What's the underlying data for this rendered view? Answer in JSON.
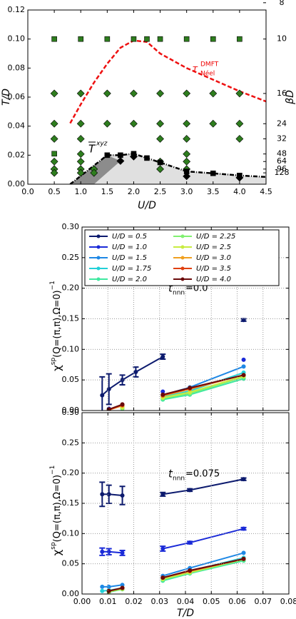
{
  "chart_data": [
    {
      "type": "phase",
      "xlabel": "U/D",
      "ylabel": "T/D",
      "y2label": "βD",
      "xlim": [
        0,
        4.5
      ],
      "ylim": [
        0,
        0.12
      ],
      "y2scale": "reciprocal",
      "xticks": [
        {
          "value": 0,
          "label": "0.0"
        },
        {
          "value": 0.5,
          "label": "0.5"
        },
        {
          "value": 1,
          "label": "1.0"
        },
        {
          "value": 1.5,
          "label": "1.5"
        },
        {
          "value": 2,
          "label": "2.0"
        },
        {
          "value": 2.5,
          "label": "2.5"
        },
        {
          "value": 3,
          "label": "3.0"
        },
        {
          "value": 3.5,
          "label": "3.5"
        },
        {
          "value": 4,
          "label": "4.0"
        },
        {
          "value": 4.5,
          "label": "4.5"
        }
      ],
      "yticks": [
        {
          "value": 0,
          "label": "0.00"
        },
        {
          "value": 0.02,
          "label": "0.02"
        },
        {
          "value": 0.04,
          "label": "0.04"
        },
        {
          "value": 0.06,
          "label": "0.06"
        },
        {
          "value": 0.08,
          "label": "0.08"
        },
        {
          "value": 0.1,
          "label": "0.10"
        },
        {
          "value": 0.12,
          "label": "0.12"
        }
      ],
      "y2ticks": [
        8,
        10,
        16,
        24,
        32,
        48,
        64,
        96,
        128
      ],
      "grid": false,
      "series": [
        {
          "kind": "polygon",
          "color": "#e0e0e0",
          "x": [
            1.25,
            1.5,
            1.75,
            2.0,
            2.25,
            2.5,
            3.0,
            3.5,
            4.0,
            4.5,
            4.5
          ],
          "values": [
            0,
            0.02,
            0.02,
            0.021,
            0.018,
            0.015,
            0.0088,
            0.0075,
            0.006,
            0.005,
            0
          ]
        },
        {
          "kind": "polygon",
          "color": "#8c8c8c",
          "x": [
            0.8,
            1.5,
            1.75,
            1.25
          ],
          "values": [
            0,
            0.02,
            0.016,
            0
          ]
        },
        {
          "kind": "line",
          "color": "#000000",
          "dash": "6,2,1,2",
          "x": [
            0.8,
            1.5,
            1.75,
            2.0,
            2.25,
            2.5,
            3.0,
            3.5,
            4.0,
            4.5
          ],
          "values": [
            0,
            0.02,
            0.02,
            0.021,
            0.018,
            0.015,
            0.0088,
            0.0075,
            0.006,
            0.005
          ]
        },
        {
          "kind": "line",
          "color": "#ee1111",
          "dash": "6,3",
          "x": [
            0.8,
            1.0,
            1.25,
            1.5,
            1.75,
            2.0,
            2.25,
            2.5,
            3.0,
            3.5,
            4.0,
            4.5
          ],
          "values": [
            0.042,
            0.055,
            0.07,
            0.083,
            0.094,
            0.099,
            0.098,
            0.09,
            0.08,
            0.072,
            0.064,
            0.057
          ]
        },
        {
          "kind": "square",
          "color": "#2e7d1e",
          "x": [
            0.5,
            1.0,
            1.5,
            2.0,
            2.25,
            2.5,
            3.0,
            3.5,
            4.0,
            0.5
          ],
          "values": [
            0.1,
            0.1,
            0.1,
            0.1,
            0.1,
            0.1,
            0.1,
            0.1,
            0.1,
            0.021
          ]
        },
        {
          "kind": "diamond",
          "color": "#2e7d1e",
          "x": [
            0.5,
            1.0,
            1.5,
            2.0,
            2.5,
            3.0,
            3.5,
            4.0,
            0.5,
            1.0,
            1.5,
            2.0,
            2.5,
            3.0,
            3.5,
            4.0,
            0.5,
            1.0,
            2.5,
            3.0,
            4.0,
            1.0,
            3.0,
            0.5,
            1.0,
            2.5,
            3.0,
            0.5,
            1.0,
            1.25,
            2.5,
            3.0,
            0.5,
            1.0,
            1.25
          ],
          "values": [
            0.0625,
            0.0625,
            0.0625,
            0.0625,
            0.0625,
            0.0625,
            0.0625,
            0.0625,
            0.0417,
            0.0417,
            0.0417,
            0.0417,
            0.0417,
            0.0417,
            0.0417,
            0.0417,
            0.03125,
            0.03125,
            0.03125,
            0.03125,
            0.03125,
            0.0208,
            0.0208,
            0.0156,
            0.0156,
            0.0156,
            0.0156,
            0.0104,
            0.0104,
            0.0104,
            0.0104,
            0.0104,
            0.0078,
            0.0078,
            0.0078
          ]
        },
        {
          "kind": "square",
          "color": "#000000",
          "x": [
            1.5,
            1.75,
            2.0,
            2.25,
            2.5,
            3.0,
            3.5,
            4.0
          ],
          "values": [
            0.02,
            0.02,
            0.021,
            0.018,
            0.015,
            0.0088,
            0.0075,
            0.006
          ]
        },
        {
          "kind": "diamond",
          "color": "#000000",
          "x": [
            1.75,
            2.0,
            3.0,
            4.0
          ],
          "values": [
            0.016,
            0.019,
            0.0055,
            0.0045
          ]
        }
      ],
      "annotations": {
        "neel": {
          "base": "T",
          "sup": "DMFT",
          "sub": "Néel"
        },
        "xyz": {
          "base": "T",
          "sup": "xyz"
        }
      }
    },
    {
      "type": "errorline",
      "ylabel": {
        "base": "χ",
        "sup": "sp",
        "main": "(Q=(π,π),Ω=0)",
        "exp": "−1"
      },
      "xlim": [
        0,
        0.08
      ],
      "ylim": [
        0,
        0.3
      ],
      "grid": true,
      "show_xtick_labels": false,
      "xticks": [
        {
          "value": 0,
          "label": "0.00"
        },
        {
          "value": 0.01,
          "label": "0.01"
        },
        {
          "value": 0.02,
          "label": "0.02"
        },
        {
          "value": 0.03,
          "label": "0.03"
        },
        {
          "value": 0.04,
          "label": "0.04"
        },
        {
          "value": 0.05,
          "label": "0.05"
        },
        {
          "value": 0.06,
          "label": "0.06"
        },
        {
          "value": 0.07,
          "label": "0.07"
        },
        {
          "value": 0.08,
          "label": "0.08"
        }
      ],
      "yticks": [
        {
          "value": 0,
          "label": "0.00"
        },
        {
          "value": 0.05,
          "label": "0.05"
        },
        {
          "value": 0.1,
          "label": "0.10"
        },
        {
          "value": 0.15,
          "label": "0.15"
        },
        {
          "value": 0.2,
          "label": "0.20"
        },
        {
          "value": 0.25,
          "label": "0.25"
        },
        {
          "value": 0.3,
          "label": "0.30"
        }
      ],
      "annotation": {
        "base": "t",
        "sub": "nnn",
        "text": "=0.0"
      },
      "x": [
        0.0078,
        0.0104,
        0.0156,
        0.0208,
        0.03125,
        0.0417,
        0.0625
      ],
      "series": [
        {
          "name": "U/D = 0.5",
          "color": "#0c1a6e",
          "values": [
            0.025,
            0.035,
            0.05,
            0.063,
            0.088,
            null,
            0.148
          ],
          "errors": [
            0.03,
            0.025,
            0.008,
            0.008,
            0.004,
            null,
            0.002
          ]
        },
        {
          "name": "U/D = 1.0",
          "color": "#1a2ad8",
          "values": [
            null,
            0.003,
            null,
            null,
            0.031,
            null,
            0.083
          ]
        },
        {
          "name": "U/D = 1.5",
          "color": "#1e88e5",
          "values": [
            null,
            null,
            0.008,
            null,
            0.025,
            0.038,
            0.072
          ]
        },
        {
          "name": "U/D = 1.75",
          "color": "#22d0d8",
          "values": [
            null,
            null,
            0.005,
            null,
            0.022,
            0.032,
            0.062
          ]
        },
        {
          "name": "U/D = 2.0",
          "color": "#3ee8a0",
          "values": [
            null,
            null,
            0.003,
            null,
            0.018,
            0.026,
            0.052
          ]
        },
        {
          "name": "U/D = 2.25",
          "color": "#80f070",
          "values": [
            null,
            null,
            0.004,
            null,
            0.02,
            0.028,
            0.055
          ]
        },
        {
          "name": "U/D = 2.5",
          "color": "#c8ec40",
          "values": [
            null,
            null,
            0.005,
            null,
            0.021,
            0.03,
            0.056
          ]
        },
        {
          "name": "U/D = 3.0",
          "color": "#f0a020",
          "values": [
            null,
            0.001,
            0.008,
            null,
            0.024,
            0.035,
            0.058
          ]
        },
        {
          "name": "U/D = 3.5",
          "color": "#e04010",
          "values": [
            null,
            0.001,
            0.009,
            null,
            0.025,
            0.036,
            0.058
          ]
        },
        {
          "name": "U/D = 4.0",
          "color": "#6a0a0a",
          "values": [
            null,
            0.002,
            0.01,
            null,
            0.026,
            0.037,
            0.058
          ]
        }
      ]
    },
    {
      "type": "errorline",
      "ylabel": {
        "base": "χ",
        "sup": "sp",
        "main": "(Q=(π,π),Ω=0)",
        "exp": "−1"
      },
      "xlabel": "T/D",
      "xlim": [
        0,
        0.08
      ],
      "ylim": [
        0,
        0.3
      ],
      "grid": true,
      "show_xtick_labels": true,
      "xticks": [
        {
          "value": 0,
          "label": "0.00"
        },
        {
          "value": 0.01,
          "label": "0.01"
        },
        {
          "value": 0.02,
          "label": "0.02"
        },
        {
          "value": 0.03,
          "label": "0.03"
        },
        {
          "value": 0.04,
          "label": "0.04"
        },
        {
          "value": 0.05,
          "label": "0.05"
        },
        {
          "value": 0.06,
          "label": "0.06"
        },
        {
          "value": 0.07,
          "label": "0.07"
        },
        {
          "value": 0.08,
          "label": "0.08"
        }
      ],
      "yticks": [
        {
          "value": 0,
          "label": "0.00"
        },
        {
          "value": 0.05,
          "label": "0.05"
        },
        {
          "value": 0.1,
          "label": "0.10"
        },
        {
          "value": 0.15,
          "label": "0.15"
        },
        {
          "value": 0.2,
          "label": "0.20"
        },
        {
          "value": 0.25,
          "label": "0.25"
        },
        {
          "value": 0.3,
          "label": "0.30"
        }
      ],
      "annotation": {
        "base": "t",
        "sub": "nnn",
        "text": "=0.075"
      },
      "x": [
        0.0078,
        0.0104,
        0.0156,
        0.0208,
        0.03125,
        0.0417,
        0.0625
      ],
      "series": [
        {
          "color": "#0c1a6e",
          "values": [
            0.165,
            0.165,
            0.163,
            null,
            0.165,
            0.172,
            0.19
          ],
          "errors": [
            0.02,
            0.015,
            0.015,
            null,
            0.003,
            0.002,
            0.002
          ]
        },
        {
          "color": "#1a2ad8",
          "values": [
            0.07,
            0.07,
            0.068,
            null,
            0.075,
            0.085,
            0.108
          ],
          "errors": [
            0.006,
            0.005,
            0.004,
            null,
            0.004,
            0.002,
            0.002
          ]
        },
        {
          "color": "#1e88e5",
          "values": [
            0.012,
            0.012,
            0.015,
            null,
            0.03,
            0.043,
            0.068
          ]
        },
        {
          "color": "#22d0d8",
          "values": [
            0.005,
            0.006,
            0.01,
            null,
            0.025,
            0.038,
            0.06
          ]
        },
        {
          "color": "#3ee8a0",
          "values": [
            null,
            0.003,
            0.008,
            null,
            0.022,
            0.034,
            0.055
          ]
        },
        {
          "color": "#80f070",
          "values": [
            null,
            0.004,
            0.008,
            null,
            0.024,
            0.035,
            0.057
          ]
        },
        {
          "color": "#c8ec40",
          "values": [
            null,
            0.004,
            0.009,
            null,
            0.025,
            0.036,
            0.058
          ]
        },
        {
          "color": "#f0a020",
          "values": [
            null,
            0.005,
            0.01,
            null,
            0.027,
            0.038,
            0.058
          ]
        },
        {
          "color": "#e04010",
          "values": [
            null,
            0.005,
            0.01,
            null,
            0.027,
            0.038,
            0.058
          ]
        },
        {
          "color": "#6a0a0a",
          "values": [
            null,
            0.005,
            0.01,
            null,
            0.027,
            0.039,
            0.058
          ]
        }
      ]
    }
  ]
}
